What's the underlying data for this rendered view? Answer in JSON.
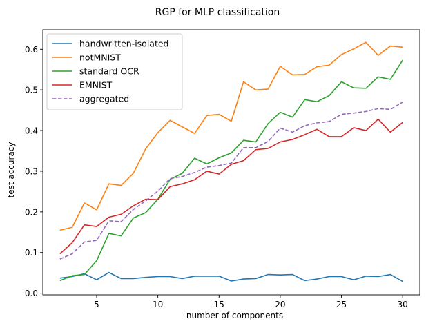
{
  "chart_data": {
    "type": "line",
    "title": "RGP for MLP classification",
    "xlabel": "number of components",
    "ylabel": "test accuracy",
    "xlim": [
      0.6,
      31.4
    ],
    "ylim": [
      -0.004,
      0.648
    ],
    "x_ticks": [
      5,
      10,
      15,
      20,
      25,
      30
    ],
    "y_ticks": [
      0.0,
      0.1,
      0.2,
      0.3,
      0.4,
      0.5,
      0.6
    ],
    "grid": false,
    "legend_position": "top-left",
    "x": [
      2,
      3,
      4,
      5,
      6,
      7,
      8,
      9,
      10,
      11,
      12,
      13,
      14,
      15,
      16,
      17,
      18,
      19,
      20,
      21,
      22,
      23,
      24,
      25,
      26,
      27,
      28,
      29,
      30
    ],
    "series": [
      {
        "name": "handwritten-isolated",
        "color": "#1f77b4",
        "dash": "solid",
        "values": [
          0.037,
          0.041,
          0.048,
          0.033,
          0.051,
          0.036,
          0.036,
          0.039,
          0.041,
          0.041,
          0.036,
          0.042,
          0.042,
          0.042,
          0.03,
          0.035,
          0.036,
          0.046,
          0.045,
          0.046,
          0.031,
          0.035,
          0.041,
          0.041,
          0.033,
          0.042,
          0.041,
          0.046,
          0.029
        ]
      },
      {
        "name": "notMNIST",
        "color": "#ff7f0e",
        "dash": "solid",
        "values": [
          0.155,
          0.162,
          0.222,
          0.205,
          0.269,
          0.265,
          0.295,
          0.355,
          0.395,
          0.425,
          0.409,
          0.393,
          0.437,
          0.44,
          0.423,
          0.52,
          0.5,
          0.502,
          0.558,
          0.537,
          0.538,
          0.557,
          0.561,
          0.587,
          0.601,
          0.617,
          0.585,
          0.608,
          0.605
        ]
      },
      {
        "name": "standard OCR",
        "color": "#2ca02c",
        "dash": "solid",
        "values": [
          0.031,
          0.043,
          0.046,
          0.08,
          0.147,
          0.141,
          0.185,
          0.198,
          0.231,
          0.28,
          0.295,
          0.332,
          0.318,
          0.333,
          0.345,
          0.376,
          0.372,
          0.417,
          0.445,
          0.433,
          0.476,
          0.471,
          0.486,
          0.52,
          0.505,
          0.504,
          0.532,
          0.526,
          0.573
        ]
      },
      {
        "name": "EMNIST",
        "color": "#d62728",
        "dash": "solid",
        "values": [
          0.097,
          0.124,
          0.168,
          0.164,
          0.187,
          0.194,
          0.215,
          0.231,
          0.23,
          0.262,
          0.269,
          0.279,
          0.3,
          0.293,
          0.317,
          0.326,
          0.353,
          0.356,
          0.372,
          0.378,
          0.39,
          0.403,
          0.385,
          0.385,
          0.407,
          0.4,
          0.428,
          0.396,
          0.42
        ]
      },
      {
        "name": "aggregated",
        "color": "#9467bd",
        "dash": "dashed",
        "values": [
          0.084,
          0.097,
          0.126,
          0.13,
          0.178,
          0.176,
          0.206,
          0.227,
          0.251,
          0.282,
          0.287,
          0.297,
          0.31,
          0.314,
          0.32,
          0.358,
          0.358,
          0.373,
          0.406,
          0.396,
          0.412,
          0.419,
          0.422,
          0.44,
          0.443,
          0.447,
          0.454,
          0.452,
          0.47
        ]
      }
    ]
  }
}
